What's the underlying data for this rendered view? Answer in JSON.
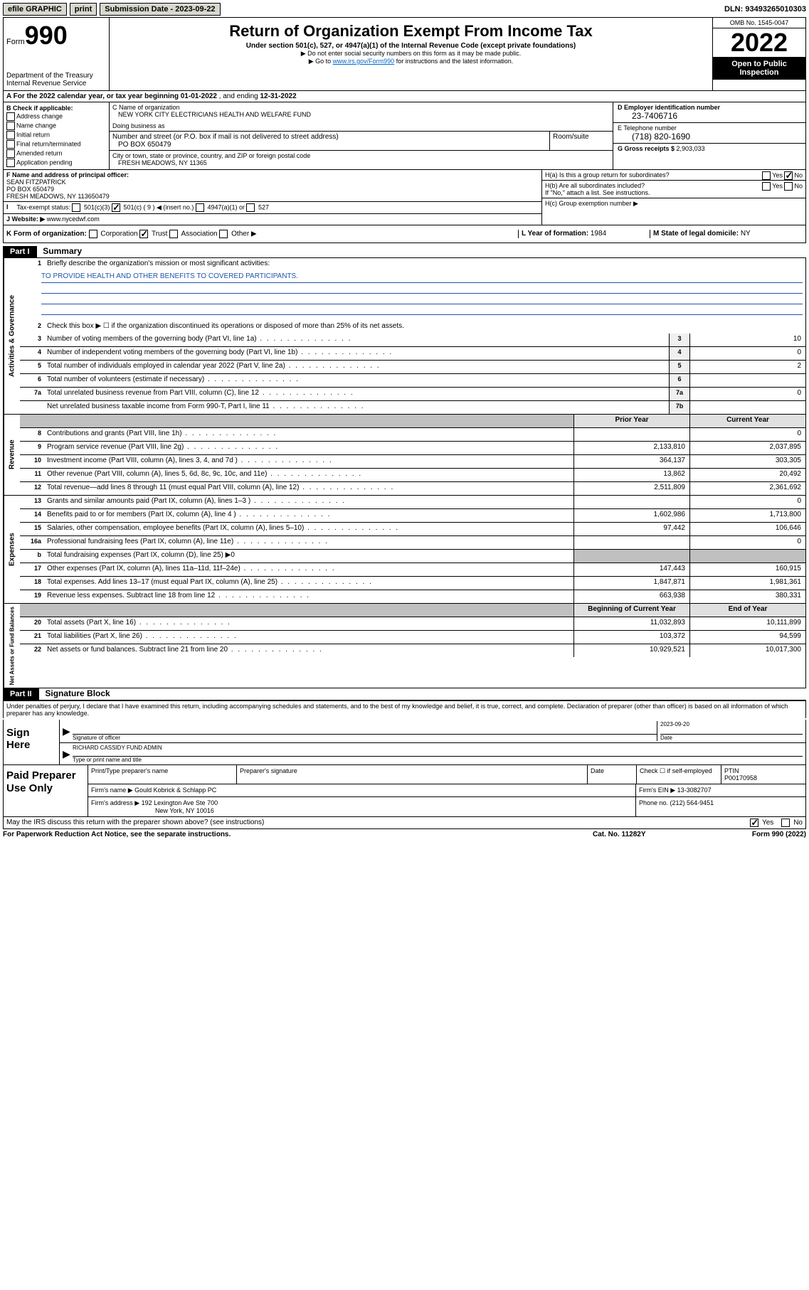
{
  "topbar": {
    "efile": "efile GRAPHIC",
    "print": "print",
    "submission_label": "Submission Date - ",
    "submission_date": "2023-09-22",
    "dln_label": "DLN: ",
    "dln": "93493265010303"
  },
  "header": {
    "form_word": "Form",
    "form_num": "990",
    "dept": "Department of the Treasury",
    "irs": "Internal Revenue Service",
    "title": "Return of Organization Exempt From Income Tax",
    "subtitle": "Under section 501(c), 527, or 4947(a)(1) of the Internal Revenue Code (except private foundations)",
    "note1": "▶ Do not enter social security numbers on this form as it may be made public.",
    "note2_pre": "▶ Go to ",
    "note2_link": "www.irs.gov/Form990",
    "note2_post": " for instructions and the latest information.",
    "omb": "OMB No. 1545-0047",
    "year": "2022",
    "inspection": "Open to Public Inspection"
  },
  "lineA": {
    "text_pre": "A For the 2022 calendar year, or tax year beginning ",
    "begin": "01-01-2022",
    "mid": " , and ending ",
    "end": "12-31-2022"
  },
  "colB": {
    "header": "B Check if applicable:",
    "items": [
      "Address change",
      "Name change",
      "Initial return",
      "Final return/terminated",
      "Amended return",
      "Application pending"
    ]
  },
  "colC": {
    "name_label": "C Name of organization",
    "name": "NEW YORK CITY ELECTRICIANS HEALTH AND WELFARE FUND",
    "dba_label": "Doing business as",
    "addr_label": "Number and street (or P.O. box if mail is not delivered to street address)",
    "room_label": "Room/suite",
    "addr": "PO BOX 650479",
    "city_label": "City or town, state or province, country, and ZIP or foreign postal code",
    "city": "FRESH MEADOWS, NY  11365"
  },
  "colDE": {
    "d_label": "D Employer identification number",
    "ein": "23-7406716",
    "e_label": "E Telephone number",
    "phone": "(718) 820-1690",
    "g_label": "G Gross receipts $ ",
    "gross": "2,903,033"
  },
  "rowF": {
    "f_label": "F Name and address of principal officer:",
    "name": "SEAN FITZPATRICK",
    "addr1": "PO BOX 650479",
    "addr2": "FRESH MEADOWS, NY  113650479"
  },
  "rowH": {
    "ha": "H(a)  Is this a group return for subordinates?",
    "yes": "Yes",
    "no": "No",
    "hb": "H(b)  Are all subordinates included?",
    "hb_note": "If \"No,\" attach a list. See instructions.",
    "hc": "H(c)  Group exemption number ▶"
  },
  "rowI": {
    "label": "Tax-exempt status:",
    "opts": [
      "501(c)(3)",
      "501(c) ( 9 ) ◀ (insert no.)",
      "4947(a)(1) or",
      "527"
    ]
  },
  "rowJ": {
    "label": "J Website: ▶ ",
    "site": "www.nycedwf.com"
  },
  "rowK": {
    "k_label": "K Form of organization:",
    "opts": [
      "Corporation",
      "Trust",
      "Association",
      "Other ▶"
    ],
    "l_label": "L Year of formation: ",
    "l_val": "1984",
    "m_label": "M State of legal domicile: ",
    "m_val": "NY"
  },
  "part1": {
    "tag": "Part I",
    "title": "Summary",
    "line1_label": "1",
    "line1_text": "Briefly describe the organization's mission or most significant activities:",
    "mission": "TO PROVIDE HEALTH AND OTHER BENEFITS TO COVERED PARTICIPANTS.",
    "line2": "Check this box ▶ ☐ if the organization discontinued its operations or disposed of more than 25% of its net assets.",
    "prior_hdr": "Prior Year",
    "current_hdr": "Current Year",
    "begin_hdr": "Beginning of Current Year",
    "end_hdr": "End of Year",
    "side_labels": [
      "Activities & Governance",
      "Revenue",
      "Expenses",
      "Net Assets or Fund Balances"
    ],
    "rows_gov": [
      {
        "n": "3",
        "d": "Number of voting members of the governing body (Part VI, line 1a)",
        "box": "3",
        "v": "10"
      },
      {
        "n": "4",
        "d": "Number of independent voting members of the governing body (Part VI, line 1b)",
        "box": "4",
        "v": "0"
      },
      {
        "n": "5",
        "d": "Total number of individuals employed in calendar year 2022 (Part V, line 2a)",
        "box": "5",
        "v": "2"
      },
      {
        "n": "6",
        "d": "Total number of volunteers (estimate if necessary)",
        "box": "6",
        "v": ""
      },
      {
        "n": "7a",
        "d": "Total unrelated business revenue from Part VIII, column (C), line 12",
        "box": "7a",
        "v": "0"
      },
      {
        "n": "",
        "d": "Net unrelated business taxable income from Form 990-T, Part I, line 11",
        "box": "7b",
        "v": ""
      }
    ],
    "rows_rev": [
      {
        "n": "8",
        "d": "Contributions and grants (Part VIII, line 1h)",
        "p": "",
        "c": "0"
      },
      {
        "n": "9",
        "d": "Program service revenue (Part VIII, line 2g)",
        "p": "2,133,810",
        "c": "2,037,895"
      },
      {
        "n": "10",
        "d": "Investment income (Part VIII, column (A), lines 3, 4, and 7d )",
        "p": "364,137",
        "c": "303,305"
      },
      {
        "n": "11",
        "d": "Other revenue (Part VIII, column (A), lines 5, 6d, 8c, 9c, 10c, and 11e)",
        "p": "13,862",
        "c": "20,492"
      },
      {
        "n": "12",
        "d": "Total revenue—add lines 8 through 11 (must equal Part VIII, column (A), line 12)",
        "p": "2,511,809",
        "c": "2,361,692"
      }
    ],
    "rows_exp": [
      {
        "n": "13",
        "d": "Grants and similar amounts paid (Part IX, column (A), lines 1–3 )",
        "p": "",
        "c": "0"
      },
      {
        "n": "14",
        "d": "Benefits paid to or for members (Part IX, column (A), line 4 )",
        "p": "1,602,986",
        "c": "1,713,800"
      },
      {
        "n": "15",
        "d": "Salaries, other compensation, employee benefits (Part IX, column (A), lines 5–10)",
        "p": "97,442",
        "c": "106,646"
      },
      {
        "n": "16a",
        "d": "Professional fundraising fees (Part IX, column (A), line 11e)",
        "p": "",
        "c": "0"
      },
      {
        "n": "b",
        "d": "Total fundraising expenses (Part IX, column (D), line 25) ▶0",
        "p": "grey",
        "c": "grey"
      },
      {
        "n": "17",
        "d": "Other expenses (Part IX, column (A), lines 11a–11d, 11f–24e)",
        "p": "147,443",
        "c": "160,915"
      },
      {
        "n": "18",
        "d": "Total expenses. Add lines 13–17 (must equal Part IX, column (A), line 25)",
        "p": "1,847,871",
        "c": "1,981,361"
      },
      {
        "n": "19",
        "d": "Revenue less expenses. Subtract line 18 from line 12",
        "p": "663,938",
        "c": "380,331"
      }
    ],
    "rows_net": [
      {
        "n": "20",
        "d": "Total assets (Part X, line 16)",
        "p": "11,032,893",
        "c": "10,111,899"
      },
      {
        "n": "21",
        "d": "Total liabilities (Part X, line 26)",
        "p": "103,372",
        "c": "94,599"
      },
      {
        "n": "22",
        "d": "Net assets or fund balances. Subtract line 21 from line 20",
        "p": "10,929,521",
        "c": "10,017,300"
      }
    ]
  },
  "part2": {
    "tag": "Part II",
    "title": "Signature Block",
    "penalty": "Under penalties of perjury, I declare that I have examined this return, including accompanying schedules and statements, and to the best of my knowledge and belief, it is true, correct, and complete. Declaration of preparer (other than officer) is based on all information of which preparer has any knowledge.",
    "sign_here": "Sign Here",
    "sig_officer": "Signature of officer",
    "sig_date": "2023-09-20",
    "date_label": "Date",
    "officer_name": "RICHARD CASSIDY FUND ADMIN",
    "type_label": "Type or print name and title"
  },
  "preparer": {
    "title": "Paid Preparer Use Only",
    "h1": "Print/Type preparer's name",
    "h2": "Preparer's signature",
    "h3": "Date",
    "h4_pre": "Check ☐ if self-employed",
    "h5": "PTIN",
    "ptin": "P00170958",
    "firm_name_label": "Firm's name     ▶ ",
    "firm_name": "Gould Kobrick & Schlapp PC",
    "firm_ein_label": "Firm's EIN ▶ ",
    "firm_ein": "13-3082707",
    "firm_addr_label": "Firm's address ▶ ",
    "firm_addr1": "192 Lexington Ave Ste 700",
    "firm_addr2": "New York, NY  10016",
    "phone_label": "Phone no. ",
    "phone": "(212) 564-9451"
  },
  "footer": {
    "discuss": "May the IRS discuss this return with the preparer shown above? (see instructions)",
    "yes": "Yes",
    "no": "No",
    "paperwork": "For Paperwork Reduction Act Notice, see the separate instructions.",
    "cat": "Cat. No. 11282Y",
    "form": "Form 990 (2022)"
  }
}
